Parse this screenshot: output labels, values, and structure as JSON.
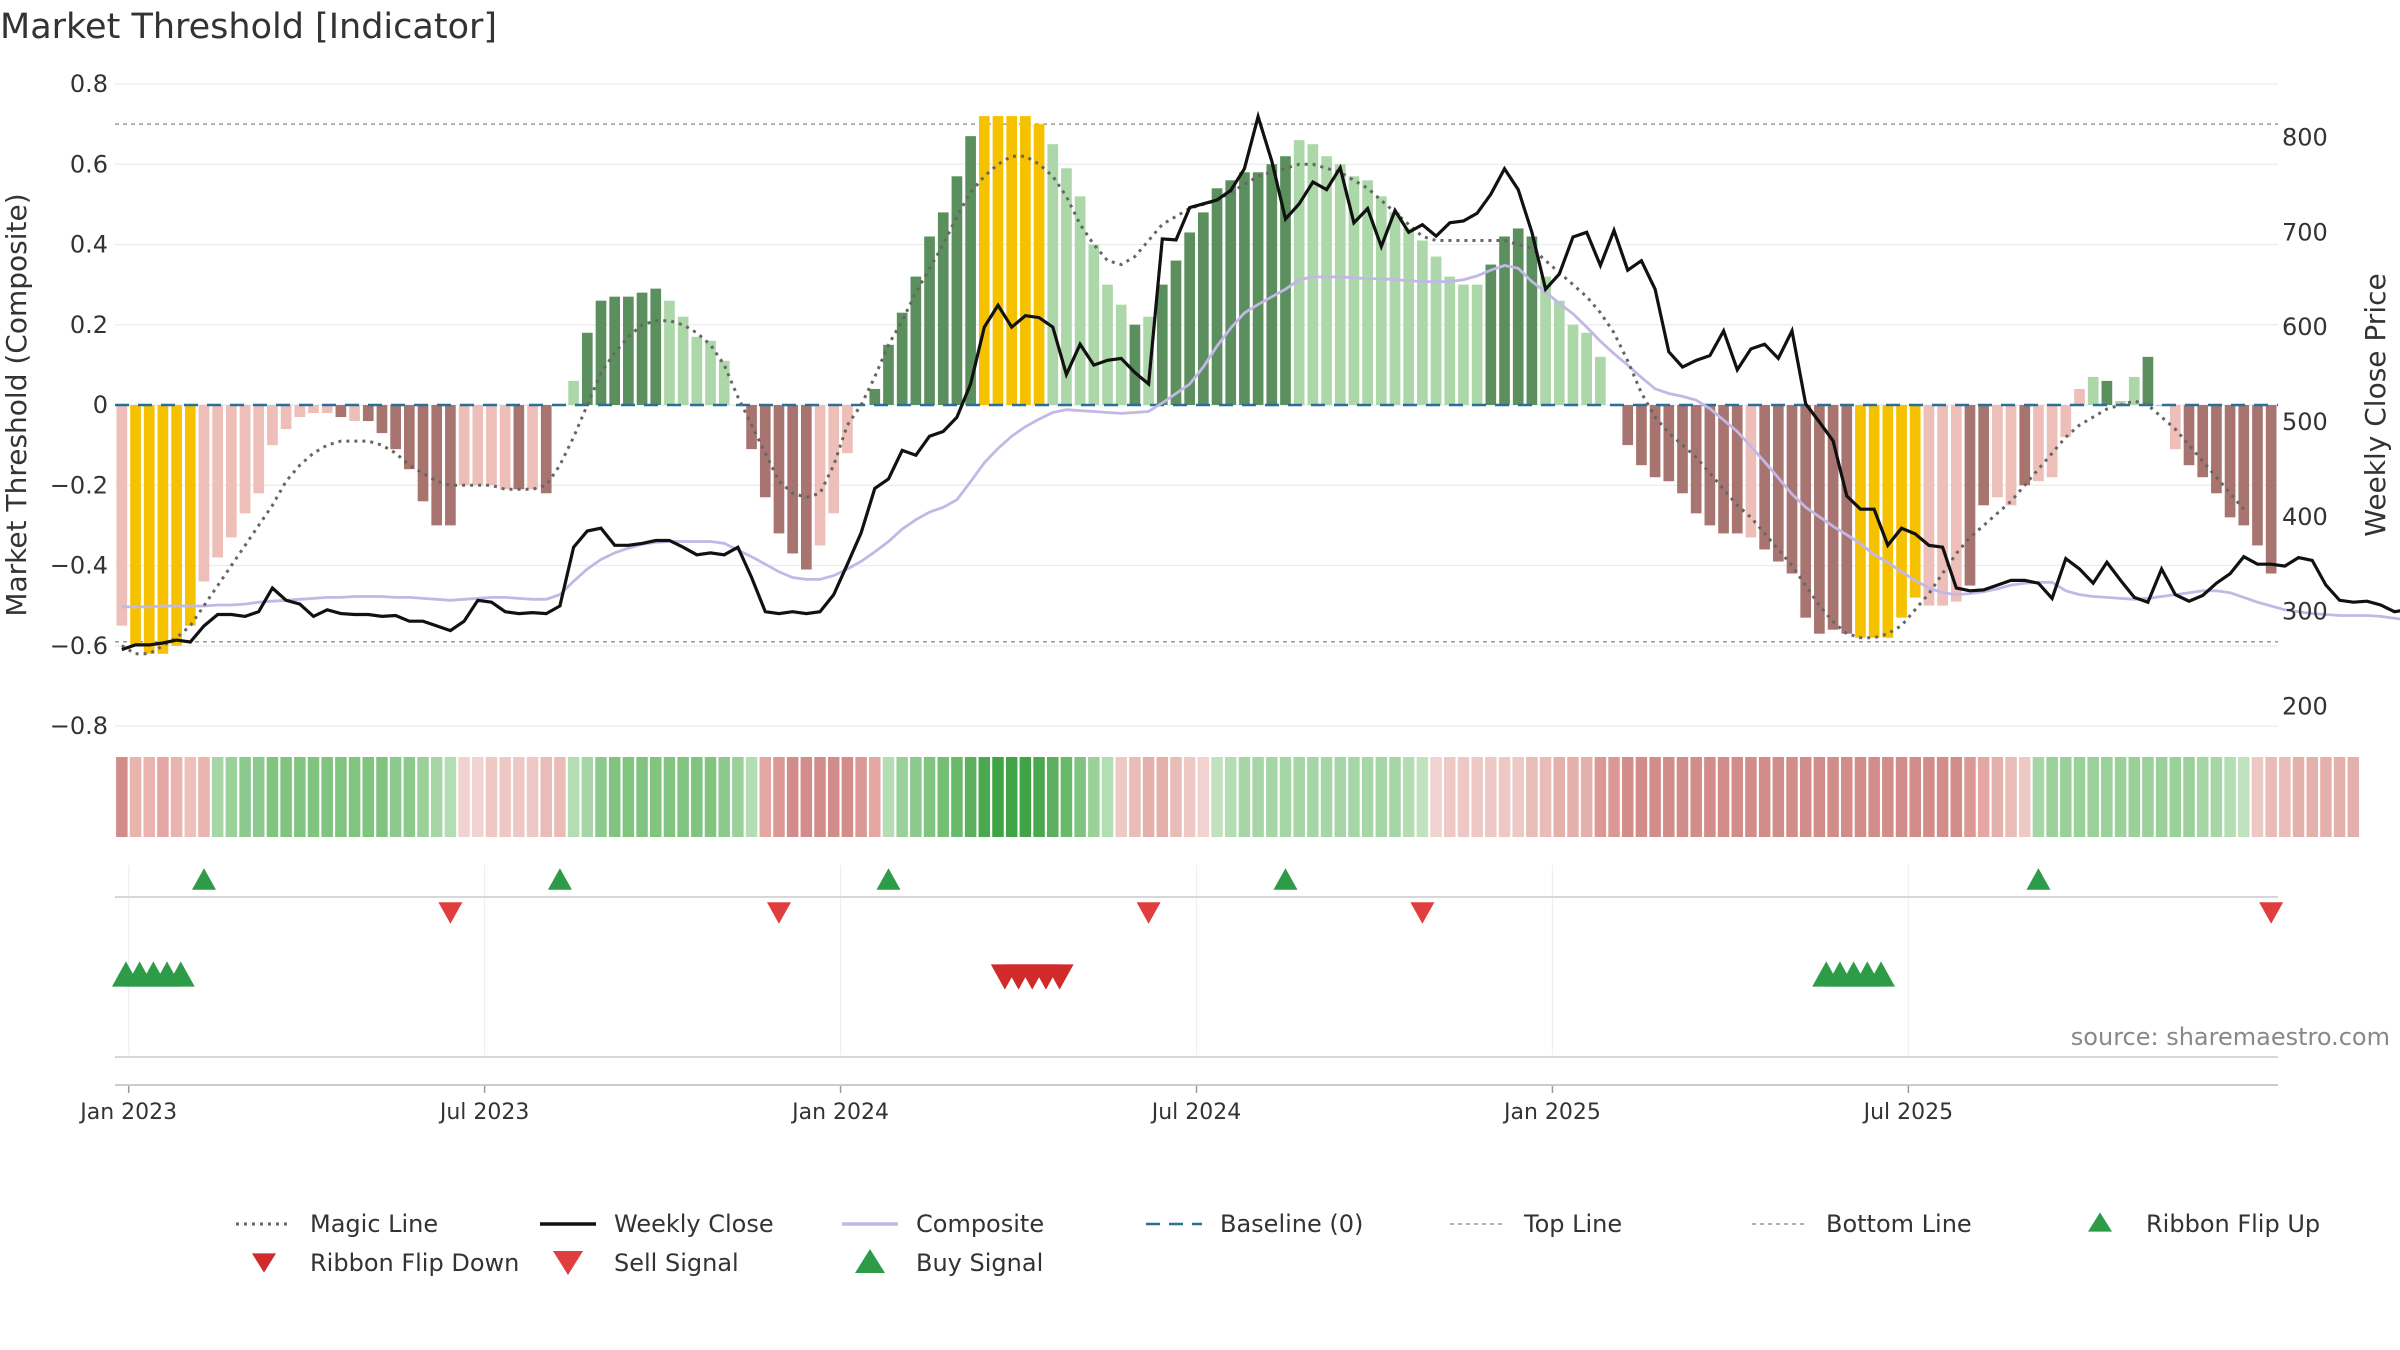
{
  "title": "Market Threshold [Indicator]",
  "source": "source: sharemaestro.com",
  "colors": {
    "magic": "#666666",
    "weekly": "#111111",
    "composite": "#c2b8e6",
    "baseline": "#2a6f97",
    "top": "#999999",
    "bottom": "#999999",
    "extreme": "#f6c200",
    "green_dark": "#5b8f5e",
    "green_light": "#acd7a8",
    "red_dark": "#a87470",
    "red_light": "#eebeb9",
    "ribbon_up": "#2e9b48",
    "ribbon_down": "#d02a2a",
    "sell": "#e03e3e",
    "buy": "#2e9b48"
  },
  "chart_data": {
    "type": "bar",
    "title": "Market Threshold [Indicator]",
    "y_left": {
      "label": "Market Threshold (Composite)",
      "ticks": [
        0.8,
        0.6,
        0.4,
        0.2,
        0,
        -0.2,
        -0.4,
        -0.6,
        -0.8
      ],
      "tick_labels": [
        "0.8",
        "0.6",
        "0.4",
        "0.2",
        "0",
        "−0.2",
        "−0.4",
        "−0.6",
        "−0.8"
      ],
      "range": [
        -0.8,
        0.8
      ]
    },
    "y_right": {
      "label": "Weekly Close Price",
      "ticks": [
        800,
        700,
        600,
        500,
        400,
        300,
        200
      ],
      "tick_labels": [
        "800",
        "700",
        "600",
        "500",
        "400",
        "300",
        "200"
      ],
      "range": [
        190,
        850
      ]
    },
    "x_ticks": [
      "Jan 2023",
      "Jul 2023",
      "Jan 2024",
      "Jul 2024",
      "Jan 2025",
      "Jul 2025"
    ],
    "x_tick_weeks": [
      0.5,
      26.5,
      52.5,
      78.5,
      104.5,
      130.5
    ],
    "top_line": 0.7,
    "bottom_line": -0.59,
    "baseline": 0,
    "composite": [
      -0.55,
      -0.6,
      -0.62,
      -0.62,
      -0.6,
      -0.55,
      -0.44,
      -0.38,
      -0.33,
      -0.27,
      -0.22,
      -0.1,
      -0.06,
      -0.03,
      -0.02,
      -0.02,
      -0.03,
      -0.04,
      -0.04,
      -0.07,
      -0.11,
      -0.16,
      -0.24,
      -0.3,
      -0.3,
      -0.2,
      -0.2,
      -0.2,
      -0.21,
      -0.21,
      -0.21,
      -0.22,
      0,
      0.06,
      0.18,
      0.26,
      0.27,
      0.27,
      0.28,
      0.29,
      0.26,
      0.22,
      0.17,
      0.16,
      0.11,
      0,
      -0.11,
      -0.23,
      -0.32,
      -0.37,
      -0.41,
      -0.35,
      -0.27,
      -0.12,
      0,
      0.04,
      0.15,
      0.23,
      0.32,
      0.42,
      0.48,
      0.57,
      0.67,
      0.72,
      0.72,
      0.72,
      0.72,
      0.7,
      0.65,
      0.59,
      0.52,
      0.4,
      0.3,
      0.25,
      0.2,
      0.22,
      0.3,
      0.36,
      0.43,
      0.48,
      0.54,
      0.56,
      0.58,
      0.58,
      0.6,
      0.62,
      0.66,
      0.65,
      0.62,
      0.6,
      0.57,
      0.56,
      0.52,
      0.48,
      0.44,
      0.41,
      0.37,
      0.32,
      0.3,
      0.3,
      0.35,
      0.42,
      0.44,
      0.42,
      0.32,
      0.26,
      0.2,
      0.18,
      0.12,
      0,
      -0.1,
      -0.15,
      -0.18,
      -0.19,
      -0.22,
      -0.27,
      -0.3,
      -0.32,
      -0.32,
      -0.33,
      -0.36,
      -0.39,
      -0.42,
      -0.53,
      -0.57,
      -0.56,
      -0.57,
      -0.58,
      -0.58,
      -0.58,
      -0.53,
      -0.48,
      -0.5,
      -0.5,
      -0.49,
      -0.45,
      -0.25,
      -0.23,
      -0.25,
      -0.2,
      -0.19,
      -0.18,
      -0.08,
      0.04,
      0.07,
      0.06,
      0.01,
      0.07,
      0.12,
      0.0,
      -0.11,
      -0.15,
      -0.18,
      -0.22,
      -0.28,
      -0.3,
      -0.35,
      -0.42
    ],
    "bar_colors": [
      "rl",
      "y",
      "y",
      "y",
      "y",
      "y",
      "rl",
      "rl",
      "rl",
      "rl",
      "rl",
      "rl",
      "rl",
      "rl",
      "rl",
      "rl",
      "rd",
      "rl",
      "rd",
      "rd",
      "rd",
      "rd",
      "rd",
      "rd",
      "rd",
      "rl",
      "rl",
      "rl",
      "rl",
      "rd",
      "rl",
      "rd",
      "gl",
      "gl",
      "gd",
      "gd",
      "gd",
      "gd",
      "gd",
      "gd",
      "gl",
      "gl",
      "gl",
      "gl",
      "gl",
      "rl",
      "rd",
      "rd",
      "rd",
      "rd",
      "rd",
      "rl",
      "rl",
      "rl",
      "gl",
      "gd",
      "gd",
      "gd",
      "gd",
      "gd",
      "gd",
      "gd",
      "gd",
      "y",
      "y",
      "y",
      "y",
      "y",
      "gl",
      "gl",
      "gl",
      "gl",
      "gl",
      "gl",
      "gd",
      "gl",
      "gd",
      "gd",
      "gd",
      "gd",
      "gd",
      "gd",
      "gd",
      "gd",
      "gd",
      "gd",
      "gl",
      "gl",
      "gl",
      "gl",
      "gl",
      "gl",
      "gl",
      "gl",
      "gl",
      "gl",
      "gl",
      "gl",
      "gl",
      "gl",
      "gd",
      "gd",
      "gd",
      "gd",
      "gl",
      "gl",
      "gl",
      "gl",
      "gl",
      "rl",
      "rd",
      "rd",
      "rd",
      "rd",
      "rd",
      "rd",
      "rd",
      "rd",
      "rd",
      "rl",
      "rd",
      "rd",
      "rd",
      "rd",
      "rd",
      "rd",
      "rd",
      "y",
      "y",
      "y",
      "y",
      "y",
      "rl",
      "rl",
      "rl",
      "rd",
      "rd",
      "rl",
      "rl",
      "rd",
      "rl",
      "rl",
      "rl",
      "rl",
      "gl",
      "gd",
      "gl",
      "gl",
      "gd",
      "gd",
      "rl",
      "rd",
      "rd",
      "rd",
      "rd",
      "rd",
      "rd",
      "rd",
      "rd"
    ],
    "weekly_close": [
      260,
      265,
      265,
      267,
      270,
      268,
      285,
      297,
      297,
      295,
      300,
      325,
      312,
      308,
      295,
      302,
      298,
      297,
      297,
      295,
      296,
      290,
      290,
      285,
      280,
      290,
      312,
      310,
      300,
      298,
      299,
      298,
      306,
      368,
      385,
      388,
      370,
      370,
      372,
      375,
      375,
      368,
      360,
      362,
      360,
      368,
      336,
      300,
      298,
      300,
      298,
      300,
      318,
      350,
      383,
      430,
      440,
      470,
      465,
      485,
      490,
      505,
      540,
      600,
      623,
      600,
      612,
      610,
      600,
      550,
      582,
      560,
      565,
      567,
      552,
      540,
      693,
      692,
      726,
      730,
      734,
      744,
      767,
      822,
      775,
      714,
      730,
      753,
      745,
      768,
      710,
      725,
      685,
      723,
      700,
      708,
      696,
      710,
      712,
      720,
      740,
      767,
      745,
      700,
      640,
      656,
      695,
      700,
      665,
      702,
      660,
      670,
      640,
      574,
      558,
      565,
      570,
      596,
      555,
      577,
      582,
      567,
      596,
      519,
      500,
      480,
      422,
      408,
      408,
      370,
      388,
      382,
      370,
      368,
      325,
      322,
      323,
      328,
      333,
      333,
      330,
      314,
      356,
      345,
      330,
      352,
      333,
      315,
      310,
      345,
      318,
      311,
      317,
      330,
      340,
      358,
      350,
      350,
      348,
      357,
      354,
      328,
      312,
      310,
      311,
      307,
      300,
      302,
      301
    ],
    "composite_line": [
      305,
      305,
      305,
      306,
      306,
      306,
      306,
      307,
      307,
      308,
      310,
      311,
      312,
      313,
      314,
      315,
      315,
      316,
      316,
      316,
      315,
      315,
      314,
      313,
      312,
      313,
      314,
      315,
      315,
      314,
      313,
      313,
      318,
      332,
      345,
      355,
      362,
      367,
      371,
      373,
      374,
      374,
      374,
      374,
      372,
      365,
      358,
      350,
      342,
      336,
      334,
      334,
      338,
      345,
      353,
      363,
      374,
      387,
      397,
      405,
      410,
      418,
      437,
      457,
      472,
      485,
      495,
      503,
      510,
      513,
      512,
      511,
      510,
      509,
      510,
      511,
      520,
      530,
      540,
      558,
      580,
      599,
      615,
      624,
      632,
      640,
      650,
      653,
      653,
      653,
      652,
      651,
      651,
      650,
      649,
      648,
      648,
      648,
      650,
      654,
      660,
      665,
      662,
      648,
      637,
      625,
      614,
      600,
      585,
      572,
      560,
      547,
      535,
      530,
      527,
      523,
      514,
      502,
      490,
      474,
      458,
      441,
      424,
      410,
      400,
      390,
      381,
      372,
      360,
      352,
      342,
      333,
      325,
      320,
      318,
      319,
      321,
      324,
      328,
      330,
      331,
      331,
      322,
      318,
      316,
      315,
      314,
      313,
      314,
      316,
      318,
      320,
      322,
      322,
      320,
      315,
      310,
      306,
      302,
      300,
      298,
      297,
      296,
      296,
      296,
      295,
      293,
      291,
      290
    ],
    "magic_line": [
      -0.6,
      -0.62,
      -0.62,
      -0.6,
      -0.58,
      -0.55,
      -0.5,
      -0.45,
      -0.4,
      -0.35,
      -0.3,
      -0.25,
      -0.19,
      -0.15,
      -0.12,
      -0.1,
      -0.09,
      -0.09,
      -0.09,
      -0.1,
      -0.12,
      -0.15,
      -0.17,
      -0.19,
      -0.2,
      -0.2,
      -0.2,
      -0.2,
      -0.21,
      -0.21,
      -0.21,
      -0.2,
      -0.15,
      -0.08,
      0,
      0.08,
      0.13,
      0.17,
      0.2,
      0.21,
      0.21,
      0.2,
      0.18,
      0.15,
      0.1,
      0.02,
      -0.05,
      -0.12,
      -0.19,
      -0.22,
      -0.23,
      -0.22,
      -0.15,
      -0.05,
      0,
      0.07,
      0.15,
      0.21,
      0.28,
      0.34,
      0.4,
      0.47,
      0.53,
      0.57,
      0.6,
      0.62,
      0.62,
      0.6,
      0.57,
      0.52,
      0.45,
      0.4,
      0.36,
      0.35,
      0.37,
      0.41,
      0.45,
      0.47,
      0.49,
      0.5,
      0.51,
      0.53,
      0.55,
      0.57,
      0.58,
      0.59,
      0.6,
      0.6,
      0.59,
      0.58,
      0.56,
      0.54,
      0.51,
      0.48,
      0.45,
      0.42,
      0.41,
      0.41,
      0.41,
      0.41,
      0.41,
      0.41,
      0.4,
      0.39,
      0.36,
      0.33,
      0.3,
      0.27,
      0.23,
      0.18,
      0.11,
      0.03,
      -0.03,
      -0.07,
      -0.1,
      -0.13,
      -0.17,
      -0.21,
      -0.25,
      -0.28,
      -0.32,
      -0.36,
      -0.4,
      -0.45,
      -0.5,
      -0.54,
      -0.57,
      -0.58,
      -0.58,
      -0.57,
      -0.55,
      -0.51,
      -0.47,
      -0.42,
      -0.37,
      -0.33,
      -0.3,
      -0.27,
      -0.24,
      -0.2,
      -0.16,
      -0.12,
      -0.08,
      -0.05,
      -0.03,
      -0.01,
      0,
      0.01,
      0.0,
      -0.03,
      -0.06,
      -0.1,
      -0.14,
      -0.18,
      -0.22,
      -0.26
    ],
    "ribbon_colors": [
      "#d28c89",
      "#e9b3ae",
      "#e9b3ae",
      "#e4a7a3",
      "#e9b3ae",
      "#eebfbb",
      "#e9b3ae",
      "#a6d6a6",
      "#99d199",
      "#8cc98d",
      "#8cc98d",
      "#80c480",
      "#80c480",
      "#80c480",
      "#80c480",
      "#80c480",
      "#80c480",
      "#80c480",
      "#80c480",
      "#80c480",
      "#8cc98d",
      "#8cc98d",
      "#99d199",
      "#a6d6a6",
      "#b3ddb3",
      "#f1d2d0",
      "#f1d2d0",
      "#eec8c5",
      "#eec8c5",
      "#eec8c5",
      "#eec8c5",
      "#e9bcb8",
      "#e9bcb8",
      "#b3ddb3",
      "#a6d6a6",
      "#8cc98d",
      "#80c480",
      "#80c480",
      "#80c480",
      "#80c480",
      "#80c480",
      "#80c480",
      "#80c480",
      "#80c480",
      "#8cc98d",
      "#99d199",
      "#b3ddb3",
      "#e4a7a3",
      "#dc9894",
      "#d28c89",
      "#d28c89",
      "#d28c89",
      "#d28c89",
      "#d28c89",
      "#dc9894",
      "#e4a7a3",
      "#b3ddb3",
      "#99d199",
      "#8cc98d",
      "#80c480",
      "#74bf75",
      "#68b96a",
      "#5caf5f",
      "#4aa84f",
      "#40a345",
      "#40a345",
      "#40a345",
      "#4aa84f",
      "#5caf5f",
      "#68b96a",
      "#80c480",
      "#99d199",
      "#b3ddb3",
      "#eec8c5",
      "#e9bcb8",
      "#e4b0ab",
      "#e4b0ab",
      "#e9bcb8",
      "#eec8c5",
      "#f1d2d0",
      "#c0e2bf",
      "#b3ddb3",
      "#a6d6a6",
      "#a6d6a6",
      "#a6d6a6",
      "#a6d6a6",
      "#a6d6a6",
      "#a6d6a6",
      "#a6d6a6",
      "#a6d6a6",
      "#a6d6a6",
      "#a6d6a6",
      "#a6d6a6",
      "#a6d6a6",
      "#b3ddb3",
      "#c0e2bf",
      "#f1d2d0",
      "#eec8c5",
      "#eec8c5",
      "#eec8c5",
      "#eec8c5",
      "#eec8c5",
      "#eec8c5",
      "#e9bcb8",
      "#e9bcb8",
      "#e4b0ab",
      "#e4b0ab",
      "#e4b0ab",
      "#dc9894",
      "#dc9894",
      "#d28c89",
      "#d28c89",
      "#d28c89",
      "#d28c89",
      "#d28c89",
      "#d28c89",
      "#d28c89",
      "#d28c89",
      "#d28c89",
      "#d28c89",
      "#d28c89",
      "#d28c89",
      "#d28c89",
      "#d28c89",
      "#d28c89",
      "#d28c89",
      "#d28c89",
      "#d28c89",
      "#d28c89",
      "#d28c89",
      "#d28c89",
      "#d28c89",
      "#d28c89",
      "#d28c89",
      "#d28c89",
      "#dc9894",
      "#e4a7a3",
      "#e4b0ab",
      "#e9bcb8",
      "#eec8c5",
      "#a6d6a6",
      "#99d199",
      "#99d199",
      "#99d199",
      "#99d199",
      "#99d199",
      "#99d199",
      "#99d199",
      "#99d199",
      "#99d199",
      "#99d199",
      "#99d199",
      "#a6d6a6",
      "#a6d6a6",
      "#b3ddb3",
      "#c0e2bf",
      "#eec8c5",
      "#e9bcb8",
      "#e9bcb8",
      "#e4b0ab",
      "#e4b0ab",
      "#e4b0ab",
      "#e4b0ab",
      "#e4b0ab"
    ],
    "buy_signals": [
      6,
      32,
      56,
      85,
      140
    ],
    "sell_signals": [
      24,
      48,
      75,
      95,
      157
    ],
    "ribbon_flip_up": [
      0.3,
      1.3,
      2.3,
      3.3,
      4.3,
      124.5,
      125.5,
      126.5,
      127.5,
      128.5
    ],
    "ribbon_flip_down": [
      64.5,
      65.5,
      66.5,
      67.5,
      68.5
    ],
    "legend": [
      {
        "label": "Magic Line",
        "kind": "dotted-line",
        "color": "#666666"
      },
      {
        "label": "Weekly Close",
        "kind": "line",
        "color": "#111111"
      },
      {
        "label": "Composite",
        "kind": "line",
        "color": "#c2b8e6"
      },
      {
        "label": "Baseline (0)",
        "kind": "dashed-line",
        "color": "#2a6f97"
      },
      {
        "label": "Top Line",
        "kind": "thin-dashed",
        "color": "#999999"
      },
      {
        "label": "Bottom Line",
        "kind": "thin-dashed",
        "color": "#999999"
      },
      {
        "label": "Ribbon Flip Up",
        "kind": "triangle-up",
        "color": "#2e9b48"
      },
      {
        "label": "Ribbon Flip Down",
        "kind": "triangle-down",
        "color": "#d02a2a"
      },
      {
        "label": "Sell Signal",
        "kind": "triangle-down-lg",
        "color": "#e03e3e"
      },
      {
        "label": "Buy Signal",
        "kind": "triangle-up-lg",
        "color": "#2e9b48"
      }
    ]
  }
}
